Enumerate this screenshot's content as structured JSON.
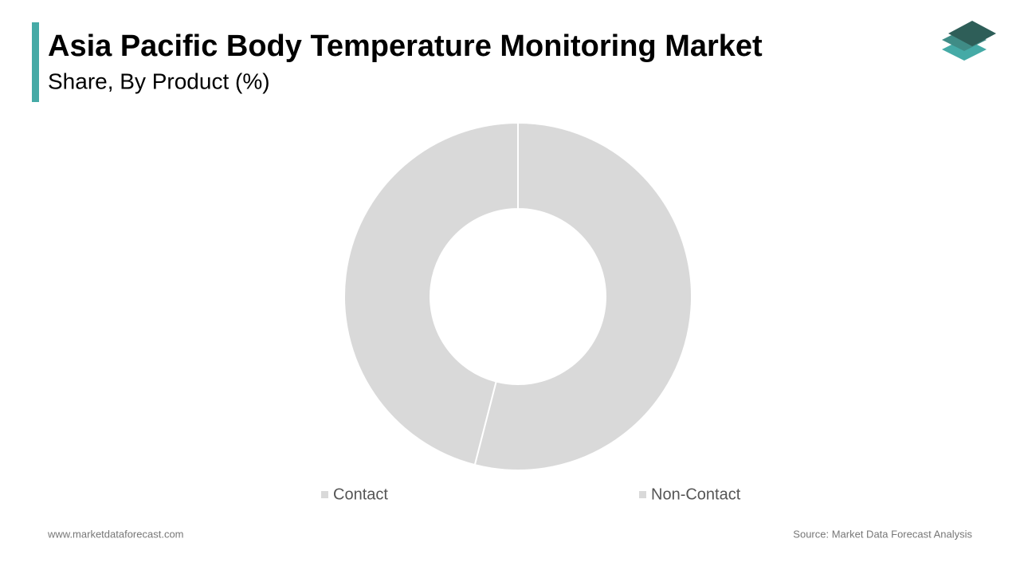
{
  "chart_data": {
    "type": "donut",
    "title": "Asia Pacific Body Temperature Monitoring Market",
    "subtitle": "Share, By Product (%)",
    "categories": [
      "Contact",
      "Non-Contact"
    ],
    "values": [
      54,
      46
    ],
    "colors": [
      "#d9d9d9",
      "#d9d9d9"
    ]
  },
  "footer": {
    "website": "www.marketdataforecast.com",
    "source": "Source: Market Data Forecast Analysis"
  }
}
